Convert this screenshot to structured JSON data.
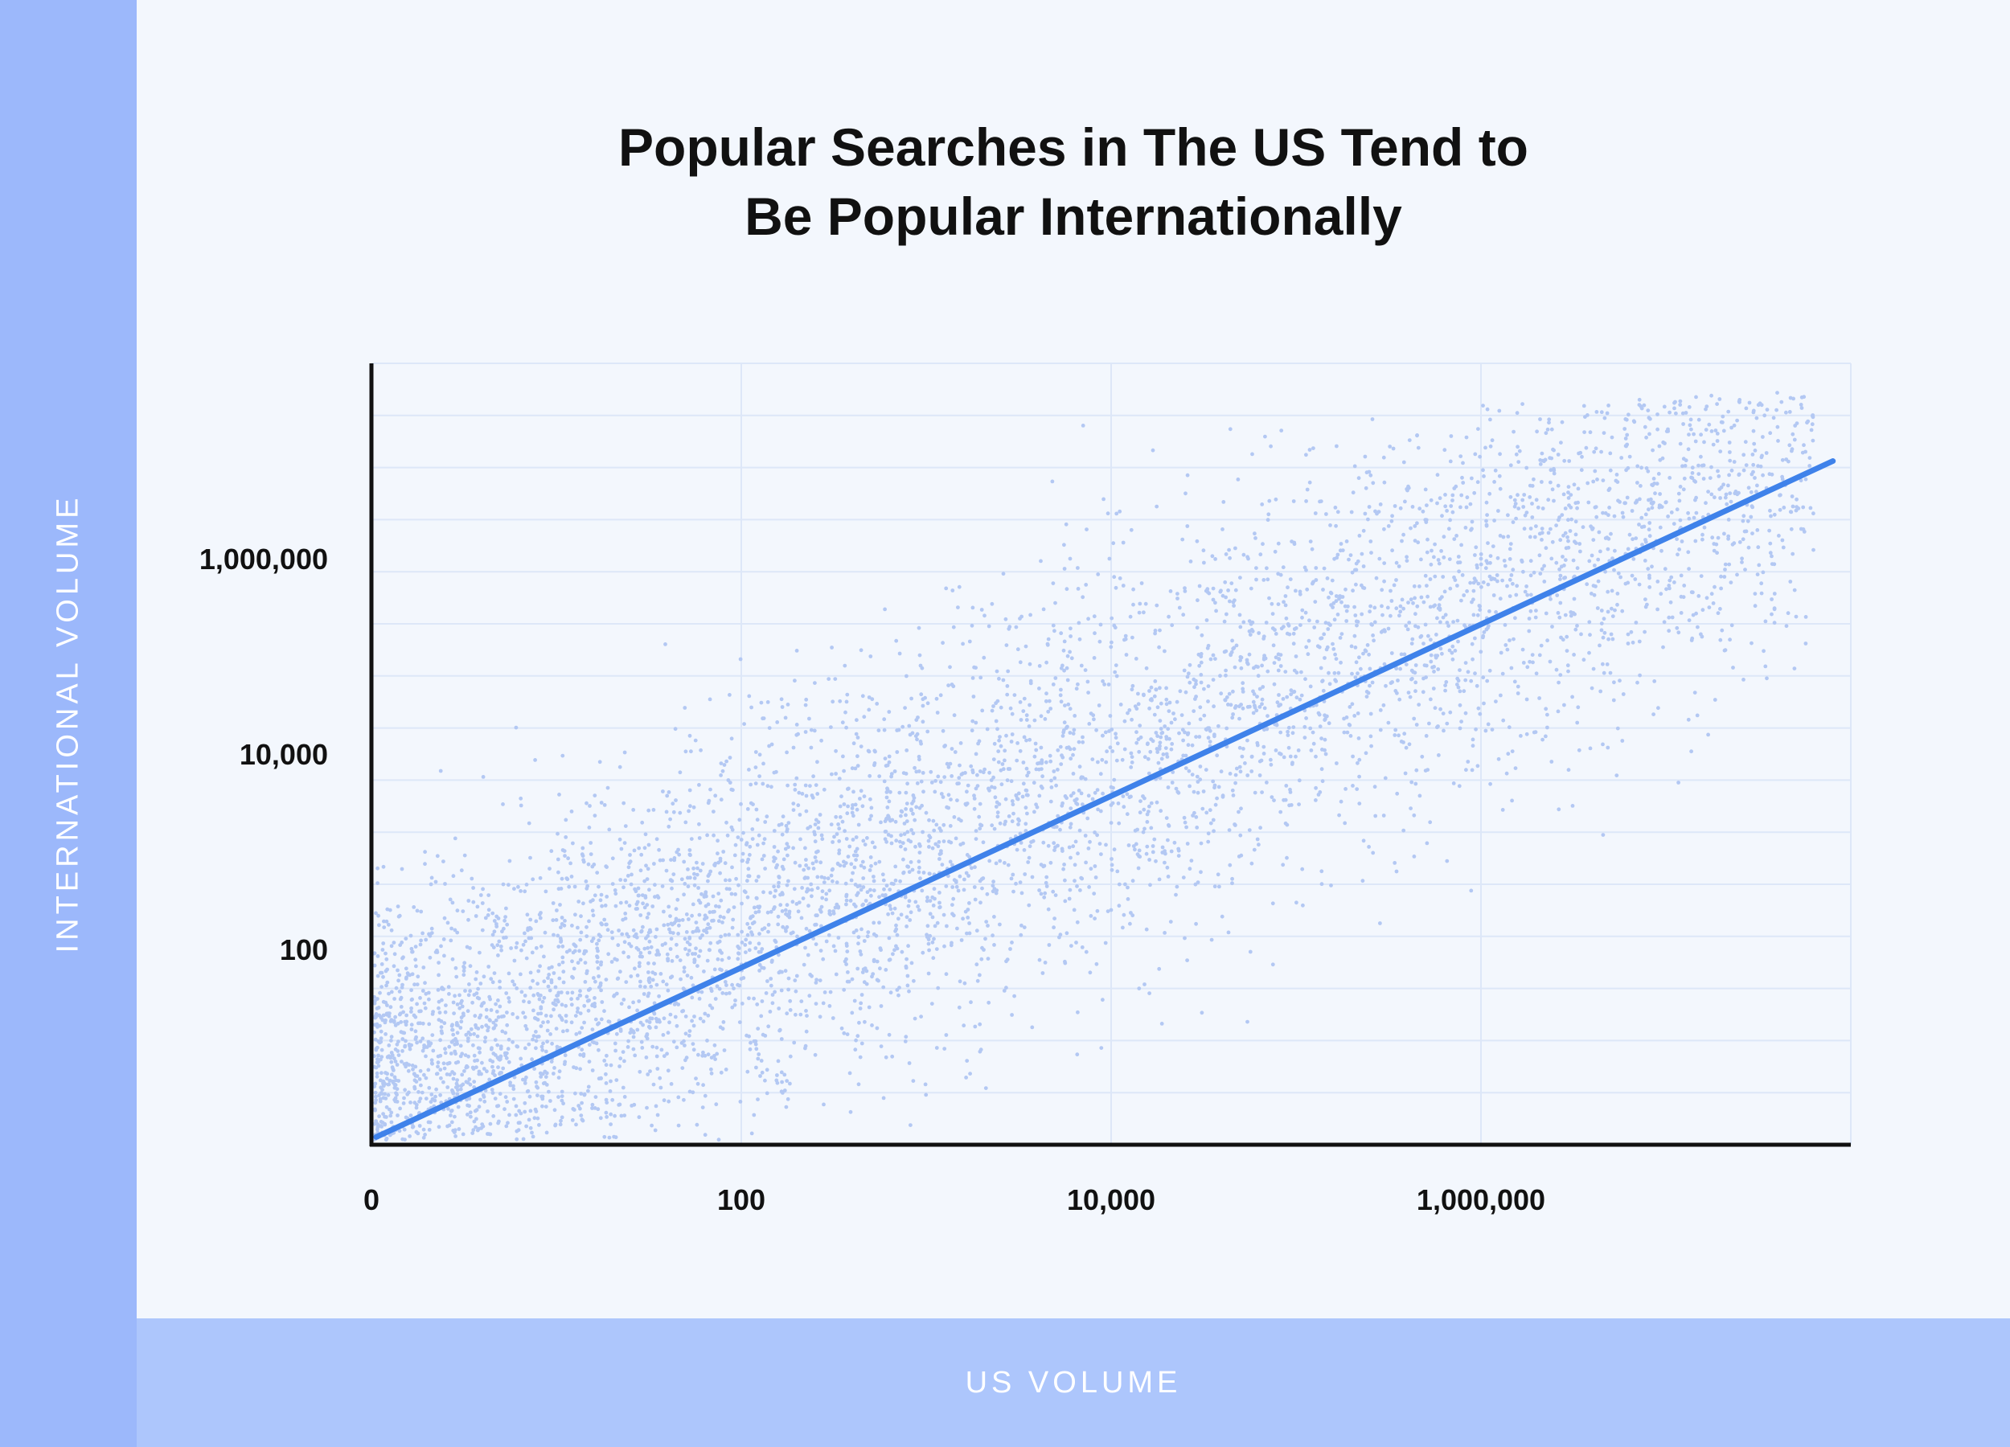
{
  "chart_data": {
    "type": "scatter",
    "title_lines": [
      "Popular Searches in The US Tend to",
      "Be Popular Internationally"
    ],
    "xlabel": "US VOLUME",
    "ylabel": "INTERNATIONAL VOLUME",
    "x_scale": "log",
    "y_scale": "log",
    "xlim": [
      1,
      100000000
    ],
    "ylim": [
      1,
      100000000
    ],
    "x_ticks": [
      {
        "value": 1,
        "label": "0"
      },
      {
        "value": 100,
        "label": "100"
      },
      {
        "value": 10000,
        "label": "10,000"
      },
      {
        "value": 1000000,
        "label": "1,000,000"
      }
    ],
    "y_ticks": [
      {
        "value": 100,
        "label": "100"
      },
      {
        "value": 10000,
        "label": "10,000"
      },
      {
        "value": 1000000,
        "label": "1,000,000"
      }
    ],
    "grid": true,
    "colors": {
      "points": "#b3c8f3",
      "trend_line": "#3f82ea",
      "axis": "#111111",
      "grid": "#dde7f8"
    },
    "trend_line": {
      "x": [
        1,
        80000000
      ],
      "y": [
        1.2,
        10000000
      ]
    },
    "points_sample": [
      [
        1.5,
        3
      ],
      [
        2,
        10
      ],
      [
        3,
        25
      ],
      [
        5,
        8
      ],
      [
        8,
        60
      ],
      [
        10,
        200
      ],
      [
        15,
        30
      ],
      [
        20,
        150
      ],
      [
        30,
        500
      ],
      [
        40,
        80
      ],
      [
        50,
        2000
      ],
      [
        60,
        300
      ],
      [
        80,
        1000
      ],
      [
        100,
        50
      ],
      [
        120,
        5000
      ],
      [
        150,
        800
      ],
      [
        200,
        20000
      ],
      [
        250,
        1500
      ],
      [
        300,
        400
      ],
      [
        400,
        3000
      ],
      [
        500,
        100000
      ],
      [
        600,
        9000
      ],
      [
        800,
        700
      ],
      [
        1000,
        2500
      ],
      [
        1200,
        40000
      ],
      [
        1500,
        5000
      ],
      [
        2000,
        300000
      ],
      [
        2500,
        15000
      ],
      [
        3000,
        1200
      ],
      [
        4000,
        8000
      ],
      [
        5000,
        60000
      ],
      [
        6000,
        1000000
      ],
      [
        8000,
        25000
      ],
      [
        10000,
        3000
      ],
      [
        12000,
        150000
      ],
      [
        15000,
        40000
      ],
      [
        20000,
        10000
      ],
      [
        25000,
        500000
      ],
      [
        30000,
        80000
      ],
      [
        40000,
        2000000
      ],
      [
        50000,
        200000
      ],
      [
        60000,
        30000
      ],
      [
        80000,
        700000
      ],
      [
        100000,
        100000
      ],
      [
        120000,
        1500000
      ],
      [
        150000,
        400000
      ],
      [
        200000,
        3000000
      ],
      [
        250000,
        50000
      ],
      [
        300000,
        900000
      ],
      [
        400000,
        5000000
      ],
      [
        500000,
        2500000
      ],
      [
        600000,
        300000
      ],
      [
        800000,
        6000000
      ],
      [
        1000000,
        1000000
      ],
      [
        1200000,
        8000000
      ],
      [
        1500000,
        150000
      ],
      [
        2000000,
        4000000
      ],
      [
        3000000,
        10000000
      ],
      [
        4000000,
        2000000
      ],
      [
        5000000,
        12000000
      ],
      [
        7000000,
        6000000
      ],
      [
        9000000,
        30000000
      ],
      [
        12000000,
        15000000
      ],
      [
        15000000,
        9000000
      ],
      [
        20000000,
        25000000
      ],
      [
        25000000,
        40000000
      ],
      [
        30000000,
        15000000
      ],
      [
        40000000,
        50000000
      ]
    ]
  }
}
